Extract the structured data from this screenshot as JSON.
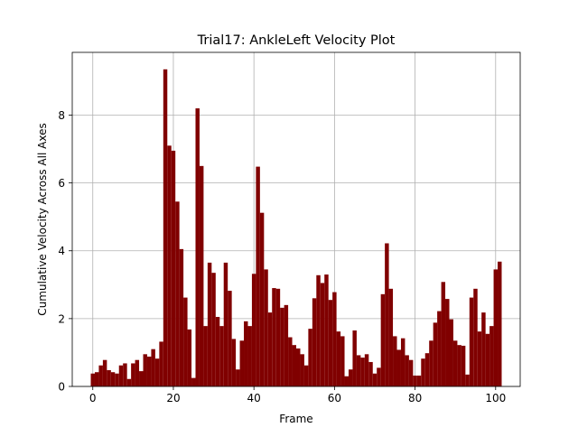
{
  "chart_data": {
    "type": "bar",
    "title": "Trial17: AnkleLeft Velocity Plot",
    "xlabel": "Frame",
    "ylabel": "Cumulative Velocity Across All Axes",
    "xlim": [
      -5.1,
      106.1
    ],
    "ylim": [
      0,
      9.85
    ],
    "x_ticks": [
      0,
      20,
      40,
      60,
      80,
      100
    ],
    "y_ticks": [
      0,
      2,
      4,
      6,
      8
    ],
    "grid": true,
    "bar_color": "#800000",
    "x": [
      0,
      1,
      2,
      3,
      4,
      5,
      6,
      7,
      8,
      9,
      10,
      11,
      12,
      13,
      14,
      15,
      16,
      17,
      18,
      19,
      20,
      21,
      22,
      23,
      24,
      25,
      26,
      27,
      28,
      29,
      30,
      31,
      32,
      33,
      34,
      35,
      36,
      37,
      38,
      39,
      40,
      41,
      42,
      43,
      44,
      45,
      46,
      47,
      48,
      49,
      50,
      51,
      52,
      53,
      54,
      55,
      56,
      57,
      58,
      59,
      60,
      61,
      62,
      63,
      64,
      65,
      66,
      67,
      68,
      69,
      70,
      71,
      72,
      73,
      74,
      75,
      76,
      77,
      78,
      79,
      80,
      81,
      82,
      83,
      84,
      85,
      86,
      87,
      88,
      89,
      90,
      91,
      92,
      93,
      94,
      95,
      96,
      97,
      98,
      99,
      100,
      101
    ],
    "values": [
      0.38,
      0.42,
      0.62,
      0.78,
      0.48,
      0.42,
      0.38,
      0.62,
      0.68,
      0.22,
      0.68,
      0.78,
      0.45,
      0.95,
      0.88,
      1.1,
      0.82,
      1.32,
      9.35,
      7.1,
      6.95,
      5.45,
      4.05,
      2.62,
      1.68,
      0.25,
      8.2,
      6.5,
      1.78,
      3.65,
      3.35,
      2.05,
      1.78,
      3.65,
      2.82,
      1.4,
      0.5,
      1.35,
      1.92,
      1.78,
      3.32,
      6.48,
      5.12,
      3.45,
      2.18,
      2.9,
      2.88,
      2.32,
      2.4,
      1.45,
      1.22,
      1.12,
      0.95,
      0.62,
      1.7,
      2.6,
      3.28,
      3.05,
      3.3,
      2.55,
      2.78,
      1.62,
      1.48,
      0.3,
      0.5,
      1.65,
      0.92,
      0.85,
      0.95,
      0.72,
      0.38,
      0.55,
      2.72,
      4.22,
      2.88,
      1.48,
      1.08,
      1.42,
      0.92,
      0.78,
      0.32,
      0.32,
      0.82,
      0.98,
      1.35,
      1.88,
      2.22,
      3.08,
      2.58,
      1.98,
      1.35,
      1.22,
      1.2,
      0.35,
      2.62,
      2.88,
      1.62,
      2.18,
      1.55,
      1.78,
      3.45,
      3.68
    ]
  }
}
